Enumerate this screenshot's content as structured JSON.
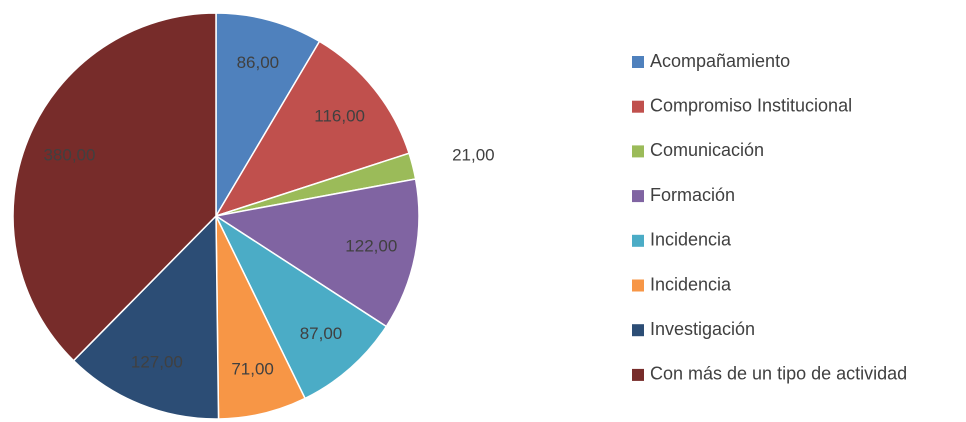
{
  "chart_data": {
    "type": "pie",
    "categories": [
      "Acompañamiento",
      "Compromiso Institucional",
      "Comunicación",
      "Formación",
      "Incidencia",
      "Incidencia",
      "Investigación",
      "Con más de un tipo de actividad"
    ],
    "values": [
      86,
      116,
      21,
      122,
      87,
      71,
      127,
      380
    ],
    "value_labels": [
      "86,00",
      "116,00",
      "21,00",
      "122,00",
      "87,00",
      "71,00",
      "127,00",
      "380,00"
    ],
    "colors": [
      "#4f81bd",
      "#c0504d",
      "#9bbb59",
      "#8064a2",
      "#4bacc6",
      "#f79646",
      "#2c4d75",
      "#772c2a"
    ],
    "legend": "right"
  }
}
